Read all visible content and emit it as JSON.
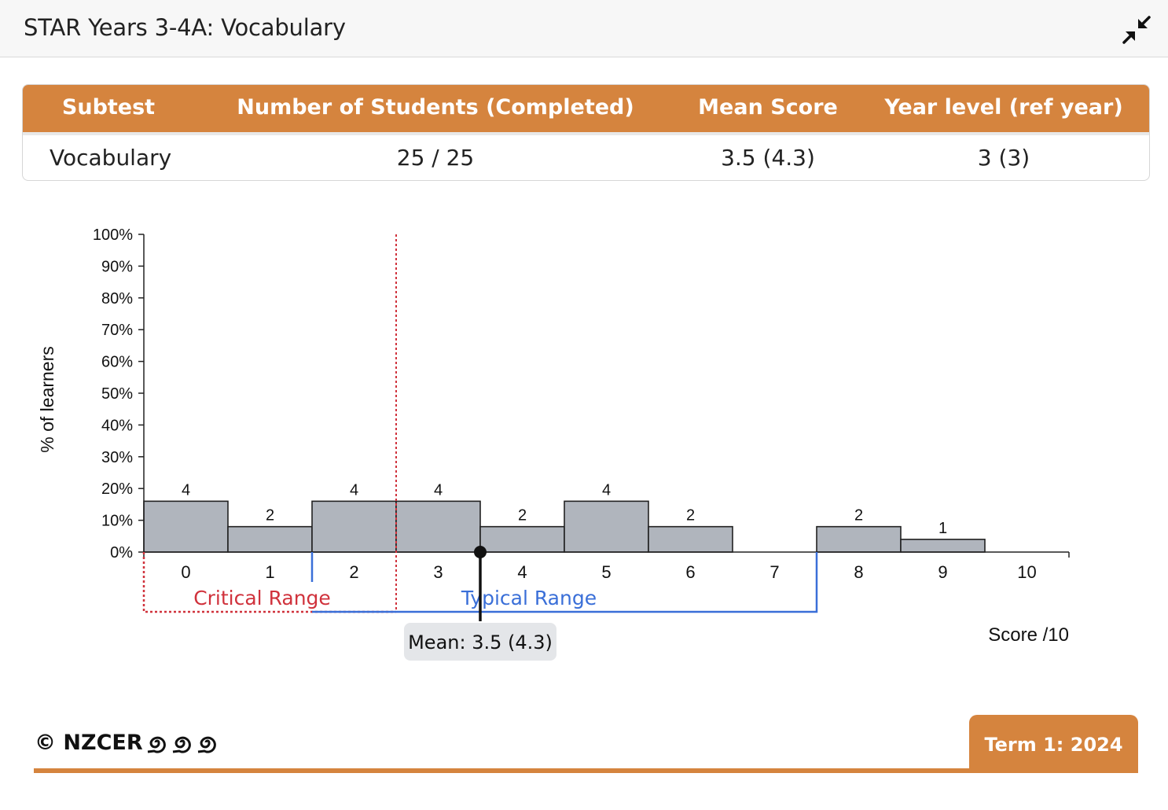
{
  "header": {
    "title": "STAR Years 3-4A: Vocabulary",
    "collapse_icon": "collapse-arrows-icon"
  },
  "summary_table": {
    "columns": [
      "Subtest",
      "Number of Students (Completed)",
      "Mean Score",
      "Year level (ref year)"
    ],
    "rows": [
      [
        "Vocabulary",
        "25 / 25",
        "3.5 (4.3)",
        "3 (3)"
      ]
    ]
  },
  "chart_data": {
    "type": "bar",
    "categories": [
      "0",
      "1",
      "2",
      "3",
      "4",
      "5",
      "6",
      "7",
      "8",
      "9",
      "10"
    ],
    "counts": [
      4,
      2,
      4,
      4,
      2,
      4,
      2,
      0,
      2,
      1,
      0
    ],
    "values_percent": [
      16,
      8,
      16,
      16,
      8,
      16,
      8,
      0,
      8,
      4,
      0
    ],
    "count_labels": [
      "4",
      "2",
      "4",
      "4",
      "2",
      "4",
      "2",
      "",
      "2",
      "1",
      ""
    ],
    "ylabel": "% of learners",
    "xlabel": "Score /10",
    "ylim": [
      0,
      100
    ],
    "yticks": [
      "0%",
      "10%",
      "20%",
      "30%",
      "40%",
      "50%",
      "60%",
      "70%",
      "80%",
      "90%",
      "100%"
    ],
    "bar_color": "#b0b5bd",
    "critical_range": {
      "label": "Critical Range",
      "from": -0.5,
      "to": 2.5,
      "color": "#d0323c"
    },
    "typical_range": {
      "label": "Typical Range",
      "from": 1.5,
      "to": 7.5,
      "color": "#3a6fd8"
    },
    "mean": {
      "value": 3.5,
      "label": "Mean: 3.5 (4.3)"
    }
  },
  "footer": {
    "logo_text": "© NZCER",
    "logo_icon": "koru-spirals-icon",
    "term": "Term 1: 2024"
  }
}
